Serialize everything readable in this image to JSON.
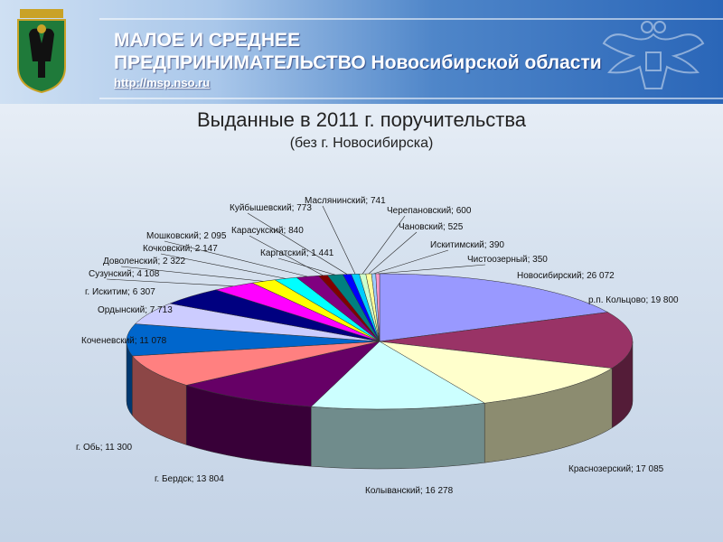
{
  "header": {
    "line1": "МАЛОЕ И СРЕДНЕЕ",
    "line2": "ПРЕДПРИНИМАТЕЛЬСТВО Новосибирской области",
    "url": "http://msp.nso.ru"
  },
  "colors": {
    "header_blue": "#2a66b8"
  },
  "chart_data": {
    "type": "pie",
    "title": "Выданные в 2011 г. поручительства",
    "subtitle": "(без г. Новосибирска)",
    "slices": [
      {
        "label": "Новосибирский; 26 072",
        "value": 26072,
        "color": "#9999ff"
      },
      {
        "label": "р.п. Кольцово; 19 800",
        "value": 19800,
        "color": "#993366"
      },
      {
        "label": "Краснозерский; 17 085",
        "value": 17085,
        "color": "#ffffcc"
      },
      {
        "label": "Колыванский; 16 278",
        "value": 16278,
        "color": "#ccffff"
      },
      {
        "label": "г. Бердск; 13 804",
        "value": 13804,
        "color": "#660066"
      },
      {
        "label": "г. Обь; 11 300",
        "value": 11300,
        "color": "#ff8080"
      },
      {
        "label": "Коченевский; 11 078",
        "value": 11078,
        "color": "#0066cc"
      },
      {
        "label": "Ордынский; 7 713",
        "value": 7713,
        "color": "#ccccff"
      },
      {
        "label": "г. Искитим; 6 307",
        "value": 6307,
        "color": "#000080"
      },
      {
        "label": "Сузунский; 4 108",
        "value": 4108,
        "color": "#ff00ff"
      },
      {
        "label": "Доволенский; 2 322",
        "value": 2322,
        "color": "#ffff00"
      },
      {
        "label": "Кочковский; 2 147",
        "value": 2147,
        "color": "#00ffff"
      },
      {
        "label": "Мошковский; 2 095",
        "value": 2095,
        "color": "#800080"
      },
      {
        "label": "Карасукский; 840",
        "value": 840,
        "color": "#800000"
      },
      {
        "label": "Каргатский; 1 441",
        "value": 1441,
        "color": "#008080"
      },
      {
        "label": "Куйбышевский; 773",
        "value": 773,
        "color": "#0000ff"
      },
      {
        "label": "Маслянинский; 741",
        "value": 741,
        "color": "#00ccff"
      },
      {
        "label": "Черепановский; 600",
        "value": 600,
        "color": "#ccffcc"
      },
      {
        "label": "Чановский; 525",
        "value": 525,
        "color": "#ffff99"
      },
      {
        "label": "Искитимский; 390",
        "value": 390,
        "color": "#99ccff"
      },
      {
        "label": "Чистоозерный; 350",
        "value": 350,
        "color": "#ff99cc"
      }
    ]
  }
}
